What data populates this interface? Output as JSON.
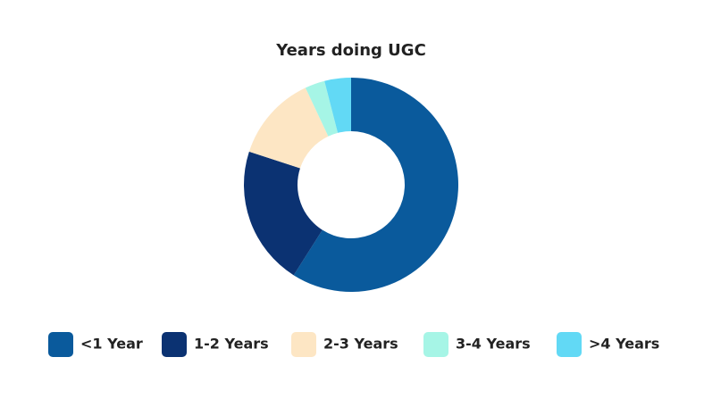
{
  "chart_data": {
    "type": "pie",
    "title": "Years doing UGC",
    "categories": [
      "<1 Year",
      "1-2 Years",
      "2-3 Years",
      "3-4 Years",
      ">4 Years"
    ],
    "values": [
      59,
      21,
      13,
      3,
      4
    ],
    "colors": [
      "#0a5a9c",
      "#0b3272",
      "#fde6c4",
      "#a6f5e6",
      "#62d9f5"
    ],
    "legend": "bottom"
  }
}
